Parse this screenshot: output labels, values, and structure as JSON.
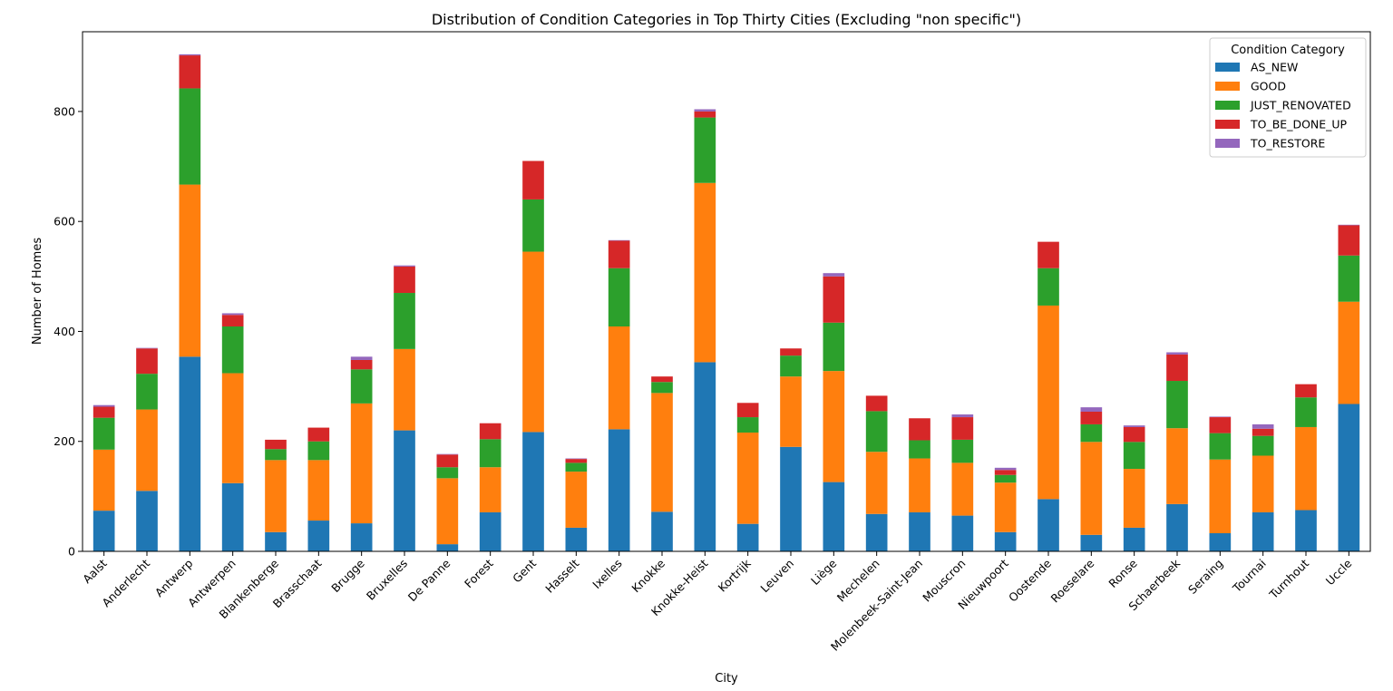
{
  "chart_data": {
    "type": "bar",
    "stacked": true,
    "title": "Distribution of Condition Categories in Top Thirty Cities (Excluding \"non specific\")",
    "xlabel": "City",
    "ylabel": "Number of Homes",
    "ylim": [
      0,
      945
    ],
    "yticks": [
      0,
      200,
      400,
      600,
      800
    ],
    "grid": false,
    "legend": {
      "title": "Condition Category",
      "placement": "top-right"
    },
    "categories": [
      "Aalst",
      "Anderlecht",
      "Antwerp",
      "Antwerpen",
      "Blankenberge",
      "Brasschaat",
      "Brugge",
      "Bruxelles",
      "De Panne",
      "Forest",
      "Gent",
      "Hasselt",
      "Ixelles",
      "Knokke",
      "Knokke-Heist",
      "Kortrijk",
      "Leuven",
      "Liège",
      "Mechelen",
      "Molenbeek-Saint-Jean",
      "Mouscron",
      "Nieuwpoort",
      "Oostende",
      "Roeselare",
      "Ronse",
      "Schaerbeek",
      "Seraing",
      "Tournai",
      "Turnhout",
      "Uccle"
    ],
    "series": [
      {
        "name": "AS_NEW",
        "color": "#1f77b4",
        "values": [
          74,
          110,
          354,
          124,
          35,
          56,
          51,
          220,
          13,
          71,
          217,
          43,
          222,
          72,
          344,
          50,
          190,
          126,
          68,
          71,
          65,
          35,
          95,
          30,
          43,
          86,
          33,
          71,
          75,
          268
        ]
      },
      {
        "name": "GOOD",
        "color": "#ff7f0e",
        "values": [
          111,
          148,
          313,
          200,
          131,
          110,
          218,
          148,
          120,
          82,
          328,
          102,
          187,
          216,
          326,
          166,
          128,
          202,
          113,
          98,
          96,
          90,
          352,
          169,
          107,
          138,
          134,
          103,
          151,
          186
        ]
      },
      {
        "name": "JUST_RENOVATED",
        "color": "#2ca02c",
        "values": [
          58,
          65,
          175,
          85,
          20,
          34,
          62,
          102,
          20,
          51,
          95,
          16,
          106,
          20,
          119,
          28,
          38,
          88,
          74,
          33,
          42,
          14,
          68,
          32,
          49,
          86,
          48,
          36,
          54,
          84
        ]
      },
      {
        "name": "TO_BE_DONE_UP",
        "color": "#d62728",
        "values": [
          20,
          46,
          60,
          21,
          17,
          25,
          17,
          48,
          23,
          29,
          70,
          7,
          50,
          10,
          11,
          26,
          13,
          84,
          28,
          40,
          41,
          9,
          48,
          23,
          27,
          48,
          29,
          13,
          24,
          55
        ]
      },
      {
        "name": "TO_RESTORE",
        "color": "#9467bd",
        "values": [
          3,
          1,
          2,
          3,
          0,
          0,
          6,
          2,
          1,
          0,
          0,
          1,
          1,
          0,
          4,
          0,
          0,
          6,
          0,
          0,
          5,
          4,
          0,
          8,
          3,
          4,
          1,
          8,
          0,
          1
        ]
      }
    ]
  }
}
